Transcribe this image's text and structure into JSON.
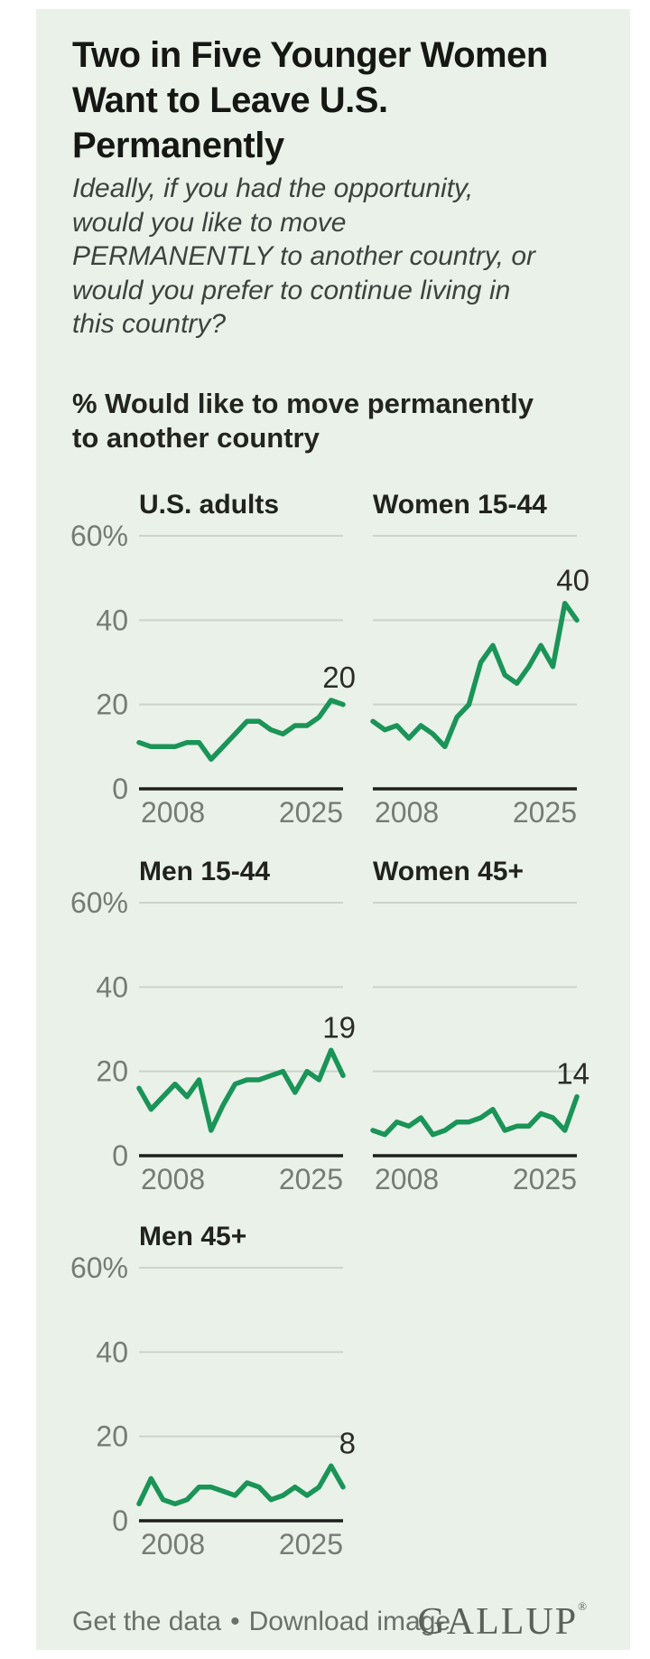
{
  "header": {
    "title_lines": [
      "Two in Five Younger Women",
      "Want to Leave U.S.",
      "Permanently"
    ],
    "subtitle_lines": [
      "Ideally, if you had the opportunity,",
      "would you like to move",
      "PERMANENTLY to another country, or",
      "would you prefer to continue living in",
      "this country?"
    ]
  },
  "section_heading_lines": [
    "% Would like to move permanently",
    "to another country"
  ],
  "colors": {
    "page_bg": "#ffffff",
    "card_bg": "#e9f1e9",
    "line": "#1a9457",
    "grid": "#cbd3cb",
    "axis": "#1e1f1b",
    "tick_label": "#747c75",
    "end_label": "#2b2c28"
  },
  "chart_data": {
    "type": "line",
    "x": [
      "2007",
      "2008",
      "2009",
      "2010",
      "2011",
      "2012",
      "2013",
      "2014",
      "2015",
      "2016",
      "2017",
      "2018",
      "2019",
      "2021",
      "2022",
      "2023",
      "2024",
      "2025"
    ],
    "x_tick_labels": [
      "2008",
      "2025"
    ],
    "y_ticks": [
      {
        "value": 60,
        "label": "60%"
      },
      {
        "value": 40,
        "label": "40"
      },
      {
        "value": 20,
        "label": "20"
      },
      {
        "value": 0,
        "label": "0"
      }
    ],
    "ylim": [
      0,
      60
    ],
    "grid": true,
    "legend": "none",
    "series": [
      {
        "name": "U.S. adults",
        "end_label": "20",
        "values": [
          11,
          10,
          10,
          10,
          11,
          11,
          7,
          10,
          13,
          16,
          16,
          14,
          13,
          15,
          15,
          17,
          21,
          20
        ]
      },
      {
        "name": "Women 15-44",
        "end_label": "40",
        "values": [
          16,
          14,
          15,
          12,
          15,
          13,
          10,
          17,
          20,
          30,
          34,
          27,
          25,
          29,
          34,
          29,
          44,
          40
        ]
      },
      {
        "name": "Men 15-44",
        "end_label": "19",
        "values": [
          16,
          11,
          14,
          17,
          14,
          18,
          6,
          12,
          17,
          18,
          18,
          19,
          20,
          15,
          20,
          18,
          25,
          19
        ]
      },
      {
        "name": "Women 45+",
        "end_label": "14",
        "values": [
          6,
          5,
          8,
          7,
          9,
          5,
          6,
          8,
          8,
          9,
          11,
          6,
          7,
          7,
          10,
          9,
          6,
          14
        ]
      },
      {
        "name": "Men 45+",
        "end_label": "8",
        "values": [
          4,
          10,
          5,
          4,
          5,
          8,
          8,
          7,
          6,
          9,
          8,
          5,
          6,
          8,
          6,
          8,
          13,
          8
        ]
      }
    ]
  },
  "footer": {
    "link1": "Get the data",
    "separator": "•",
    "link2": "Download image",
    "logo": "GALLUP",
    "logo_mark": "®"
  }
}
